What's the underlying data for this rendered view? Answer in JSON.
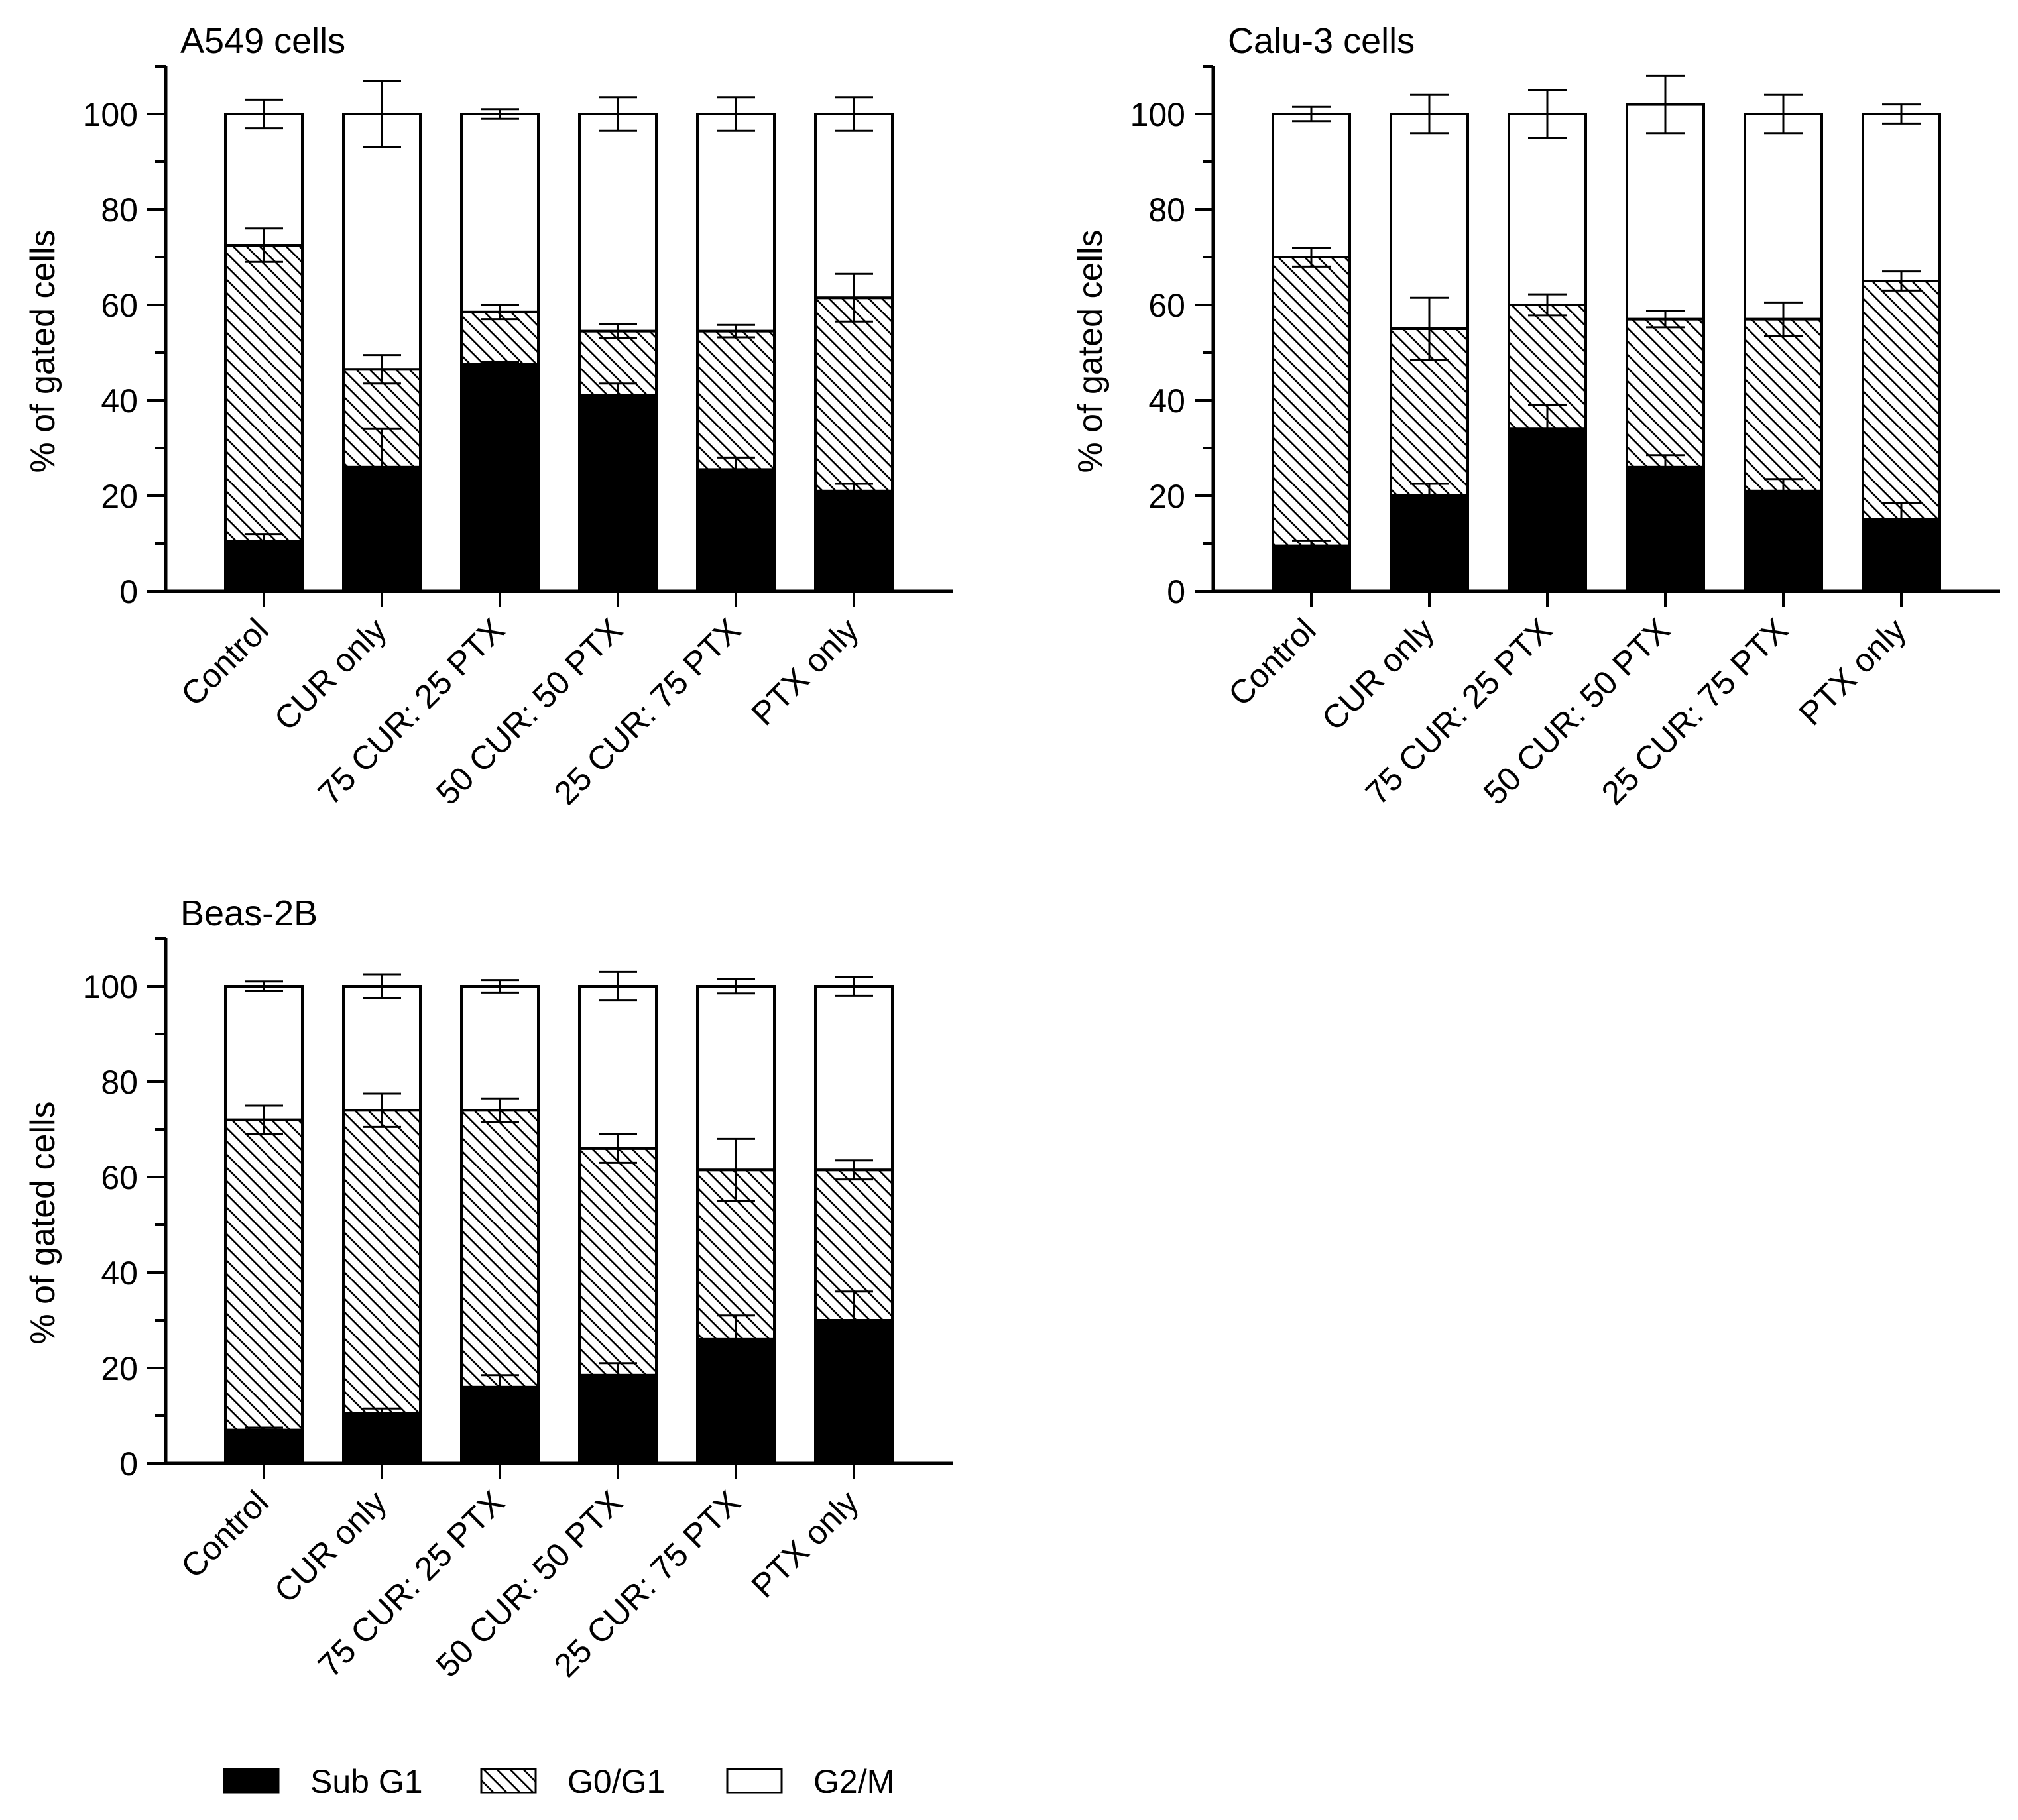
{
  "figure": {
    "legend_position": "bottom-left"
  },
  "colors": {
    "subg1": "#000000",
    "g0g1_hatch": "#000000",
    "g2m": "#ffffff",
    "axis": "#000000"
  },
  "legend": [
    {
      "label": "Sub G1",
      "style": "solid"
    },
    {
      "label": "G0/G1",
      "style": "hatch"
    },
    {
      "label": "G2/M",
      "style": "empty"
    }
  ],
  "chart_data": [
    {
      "type": "stacked-bar",
      "title": "A549 cells",
      "ylabel": "% of gated cells",
      "xlabel": "",
      "ylim": [
        0,
        110
      ],
      "yticks": [
        "0",
        "20",
        "40",
        "60",
        "80",
        "100"
      ],
      "categories": [
        "Control",
        "CUR only",
        "75 CUR: 25 PTX",
        "50 CUR: 50 PTX",
        "25 CUR: 75 PTX",
        "PTX only"
      ],
      "series": [
        {
          "name": "Sub G1",
          "values": [
            10.5,
            26,
            47.5,
            41,
            25.5,
            21
          ],
          "errors": [
            1.5,
            8,
            0.5,
            2.5,
            2.5,
            1.5
          ]
        },
        {
          "name": "G0/G1",
          "values": [
            62,
            20.5,
            11,
            13.5,
            29,
            40.5
          ],
          "errors": [
            3.5,
            3,
            1.5,
            1.5,
            1.3,
            5
          ]
        },
        {
          "name": "G2/M",
          "values": [
            27.5,
            53.5,
            41.5,
            45.5,
            45.5,
            38.5
          ],
          "errors": [
            3,
            7,
            1,
            3.5,
            3.5,
            3.5
          ]
        }
      ]
    },
    {
      "type": "stacked-bar",
      "title": "Calu-3 cells",
      "ylabel": "% of gated cells",
      "xlabel": "",
      "ylim": [
        0,
        110
      ],
      "yticks": [
        "0",
        "20",
        "40",
        "60",
        "80",
        "100"
      ],
      "categories": [
        "Control",
        "CUR only",
        "75 CUR: 25 PTX",
        "50 CUR: 50 PTX",
        "25 CUR: 75 PTX",
        "PTX only"
      ],
      "series": [
        {
          "name": "Sub G1",
          "values": [
            9.5,
            20,
            34,
            26,
            21,
            15
          ],
          "errors": [
            1,
            2.5,
            5,
            2.5,
            2.5,
            3.5
          ]
        },
        {
          "name": "G0/G1",
          "values": [
            60.5,
            35,
            26,
            31,
            36,
            50
          ],
          "errors": [
            2,
            6.5,
            2.2,
            1.7,
            3.5,
            2
          ]
        },
        {
          "name": "G2/M",
          "values": [
            30,
            45,
            40,
            45,
            43,
            35
          ],
          "errors": [
            1.5,
            4,
            5,
            6,
            4,
            2
          ]
        }
      ]
    },
    {
      "type": "stacked-bar",
      "title": "Beas-2B",
      "ylabel": "% of gated cells",
      "xlabel": "",
      "ylim": [
        0,
        110
      ],
      "yticks": [
        "0",
        "20",
        "40",
        "60",
        "80",
        "100"
      ],
      "categories": [
        "Control",
        "CUR only",
        "75 CUR: 25 PTX",
        "50 CUR: 50 PTX",
        "25 CUR: 75 PTX",
        "PTX only"
      ],
      "series": [
        {
          "name": "Sub G1",
          "values": [
            7,
            10.5,
            16,
            18.5,
            26,
            30
          ],
          "errors": [
            0.5,
            1,
            2.5,
            2.5,
            5,
            6
          ]
        },
        {
          "name": "G0/G1",
          "values": [
            65,
            63.5,
            58,
            47.5,
            35.5,
            31.5
          ],
          "errors": [
            3,
            3.5,
            2.5,
            3,
            6.5,
            2
          ]
        },
        {
          "name": "G2/M",
          "values": [
            28,
            26,
            26,
            34,
            38.5,
            38.5
          ],
          "errors": [
            1,
            2.5,
            1.3,
            3,
            1.5,
            2
          ]
        }
      ]
    }
  ]
}
